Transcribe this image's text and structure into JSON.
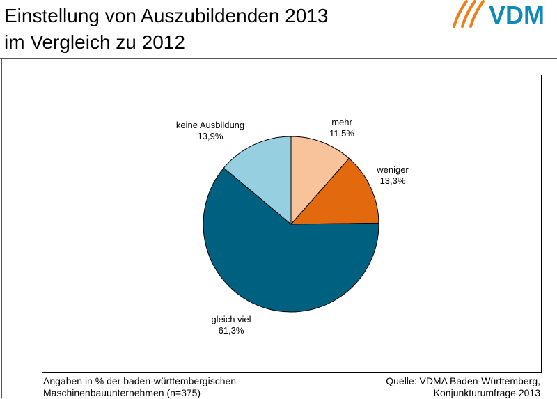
{
  "header": {
    "title_line1": "Einstellung von Auszubildenden 2013",
    "title_line2": "im Vergleich zu 2012",
    "logo_text": "VDM"
  },
  "colors": {
    "logo_orange": "#F07D1A",
    "logo_blue": "#0F8AB8",
    "frame": "#555555"
  },
  "chart_data": {
    "type": "pie",
    "start": "12 o'clock",
    "direction": "clockwise",
    "slices": [
      {
        "label": "mehr",
        "value": 11.5,
        "value_label": "11,5%",
        "color": "#F8C29A"
      },
      {
        "label": "weniger",
        "value": 13.3,
        "value_label": "13,3%",
        "color": "#E3690F"
      },
      {
        "label": "gleich viel",
        "value": 61.3,
        "value_label": "61,3%",
        "color": "#00607F"
      },
      {
        "label": "keine Ausbildung",
        "value": 13.9,
        "value_label": "13,9%",
        "color": "#96CFE0"
      }
    ]
  },
  "footer": {
    "note_line1": "Angaben in % der baden-württembergischen",
    "note_line2": "Maschinenbauunternehmen (n=375)",
    "source_line1": "Quelle: VDMA Baden-Württemberg,",
    "source_line2": "Konjunkturumfrage 2013"
  }
}
